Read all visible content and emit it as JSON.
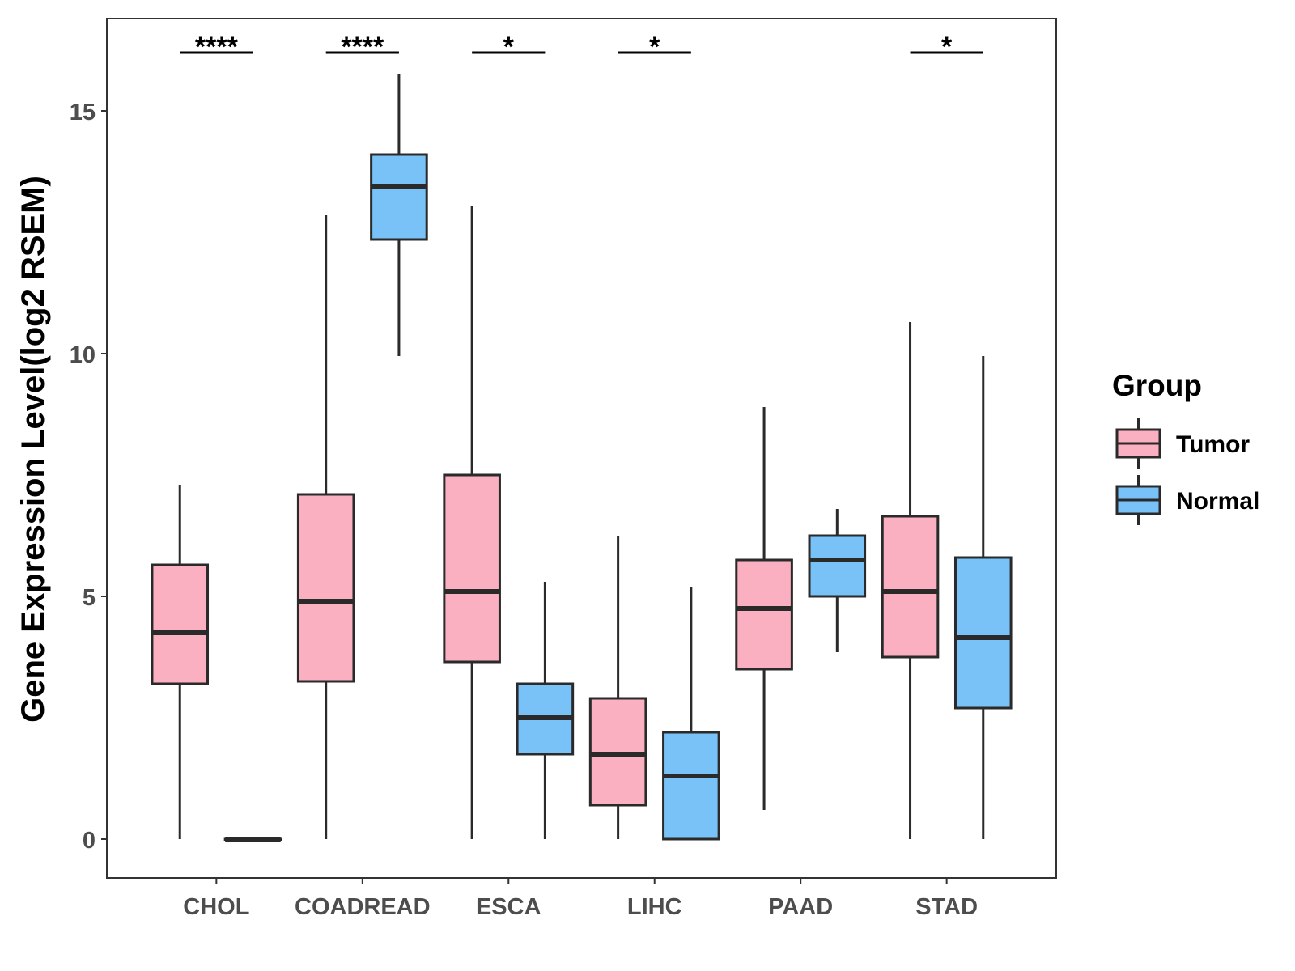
{
  "chart_data": {
    "type": "boxplot",
    "ylabel": "Gene Expression Level(log2 RSEM)",
    "xlabel": "",
    "ylim": [
      -0.8,
      16.9
    ],
    "yticks": [
      0,
      5,
      10,
      15
    ],
    "grid": false,
    "legend": {
      "title": "Group",
      "position": "right",
      "entries": [
        {
          "name": "Tumor",
          "color": "#FBB0C1"
        },
        {
          "name": "Normal",
          "color": "#78C2F8"
        }
      ]
    },
    "categories": [
      "CHOL",
      "COADREAD",
      "ESCA",
      "LIHC",
      "PAAD",
      "STAD"
    ],
    "series": [
      {
        "name": "Tumor",
        "color": "#FBB0C1",
        "boxes": [
          {
            "min": 0.0,
            "q1": 3.2,
            "median": 4.25,
            "q3": 5.65,
            "max": 7.3
          },
          {
            "min": 0.0,
            "q1": 3.25,
            "median": 4.9,
            "q3": 7.1,
            "max": 12.85
          },
          {
            "min": 0.0,
            "q1": 3.65,
            "median": 5.1,
            "q3": 7.5,
            "max": 13.05
          },
          {
            "min": 0.0,
            "q1": 0.7,
            "median": 1.75,
            "q3": 2.9,
            "max": 6.25
          },
          {
            "min": 0.6,
            "q1": 3.5,
            "median": 4.75,
            "q3": 5.75,
            "max": 8.9
          },
          {
            "min": 0.0,
            "q1": 3.75,
            "median": 5.1,
            "q3": 6.65,
            "max": 10.65
          }
        ]
      },
      {
        "name": "Normal",
        "color": "#78C2F8",
        "boxes": [
          {
            "min": 0.0,
            "q1": 0.0,
            "median": 0.0,
            "q3": 0.0,
            "max": 0.0
          },
          {
            "min": 9.95,
            "q1": 12.35,
            "median": 13.45,
            "q3": 14.1,
            "max": 15.75
          },
          {
            "min": 0.0,
            "q1": 1.75,
            "median": 2.5,
            "q3": 3.2,
            "max": 5.3
          },
          {
            "min": 0.0,
            "q1": 0.0,
            "median": 1.3,
            "q3": 2.2,
            "max": 5.2
          },
          {
            "min": 3.85,
            "q1": 5.0,
            "median": 5.75,
            "q3": 6.25,
            "max": 6.8
          },
          {
            "min": 0.0,
            "q1": 2.7,
            "median": 4.15,
            "q3": 5.8,
            "max": 9.95
          }
        ]
      }
    ],
    "significance": [
      {
        "category": "CHOL",
        "label": "****"
      },
      {
        "category": "COADREAD",
        "label": "****"
      },
      {
        "category": "ESCA",
        "label": "*"
      },
      {
        "category": "LIHC",
        "label": "*"
      },
      {
        "category": "PAAD",
        "label": ""
      },
      {
        "category": "STAD",
        "label": "*"
      }
    ],
    "significance_level": 16.2
  }
}
